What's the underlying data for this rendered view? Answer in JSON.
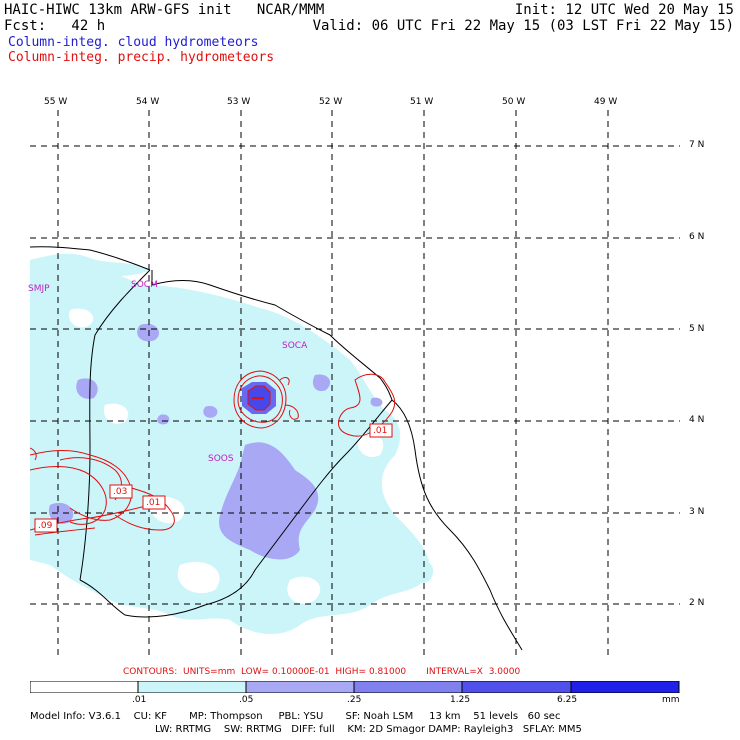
{
  "header": {
    "left1": "HAIC-HIWC 13km ARW-GFS init   NCAR/MMM",
    "right1": "Init: 12 UTC Wed 20 May 15",
    "left2": "Fcst:   42 h",
    "right2": "Valid: 06 UTC Fri 22 May 15 (03 LST Fri 22 May 15)",
    "field1": "Column-integ. cloud hydrometeors",
    "field2": "Column-integ. precip. hydrometeors"
  },
  "colors": {
    "cloud_text": "#2020d0",
    "precip_text": "#e01010",
    "shade1": "#ccf5fa",
    "shade2": "#a8a8f5",
    "shade3": "#6868f0",
    "shade4": "#2020e8"
  },
  "lon_labels": [
    "55 W",
    "54 W",
    "53 W",
    "52 W",
    "51 W",
    "50 W",
    "49 W"
  ],
  "lat_labels": [
    "7 N",
    "6 N",
    "5 N",
    "4 N",
    "3 N",
    "2 N"
  ],
  "stations": [
    "SMJP",
    "SOCM",
    "SOCA",
    "SOOS"
  ],
  "contour_labels": [
    ".01",
    ".03",
    ".01",
    ".09"
  ],
  "contours_info": "CONTOURS:  UNITS=mm  LOW= 0.10000E-01  HIGH= 0.81000       INTERVAL=X  3.0000",
  "colorbar": {
    "ticks": [
      ".01",
      ".05",
      ".25",
      "1.25",
      "6.25"
    ],
    "units": "mm"
  },
  "model_info": {
    "line1": "Model Info: V3.6.1    CU: KF       MP: Thompson     PBL: YSU       SF: Noah LSM     13 km    51 levels   60 sec",
    "line2": "LW: RRTMG    SW: RRTMG   DIFF: full    KM: 2D Smagor DAMP: Rayleigh3   SFLAY: MM5"
  }
}
